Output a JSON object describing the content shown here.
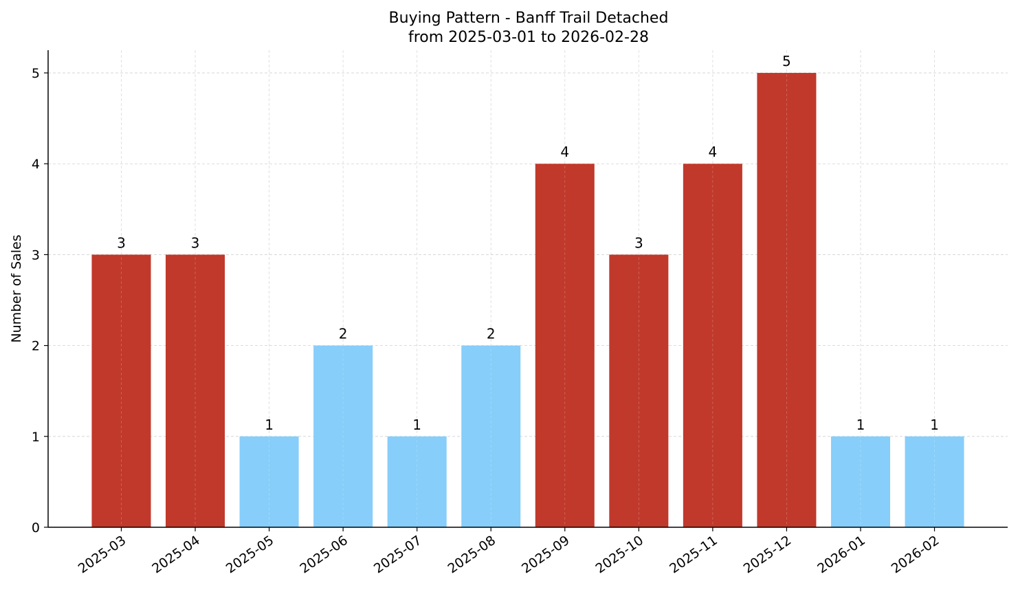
{
  "chart_data": {
    "type": "bar",
    "title": "Buying Pattern - Banff Trail Detached",
    "subtitle": "from 2025-03-01 to 2026-02-28",
    "xlabel": "",
    "ylabel": "Number of Sales",
    "categories": [
      "2025-03",
      "2025-04",
      "2025-05",
      "2025-06",
      "2025-07",
      "2025-08",
      "2025-09",
      "2025-10",
      "2025-11",
      "2025-12",
      "2026-01",
      "2026-02"
    ],
    "values": [
      3,
      3,
      1,
      2,
      1,
      2,
      4,
      3,
      4,
      5,
      1,
      1
    ],
    "ylim": [
      0,
      5.25
    ],
    "yticks": [
      0,
      1,
      2,
      3,
      4,
      5
    ],
    "grid": true,
    "data_labels": true,
    "colors": {
      "high": "#c0392b",
      "low": "#87cefa"
    },
    "color_rule": "values >= 3 high, otherwise low"
  }
}
